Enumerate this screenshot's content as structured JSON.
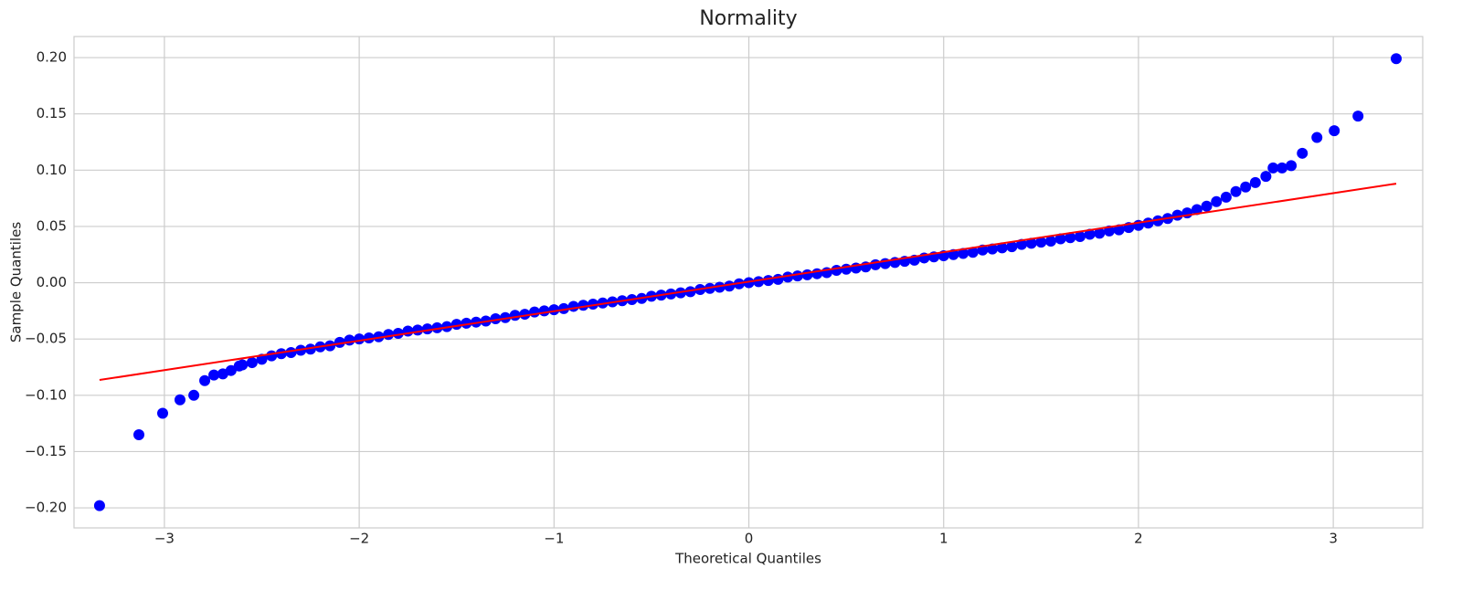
{
  "chart_data": {
    "type": "scatter",
    "title": "Normality",
    "x_label": "Theoretical Quantiles",
    "y_label": "Sample Quantiles",
    "xlim": [
      -3.464,
      3.459
    ],
    "ylim": [
      -0.2178,
      0.2187
    ],
    "xticks": [
      {
        "value": -3,
        "label": "−3"
      },
      {
        "value": -2,
        "label": "−2"
      },
      {
        "value": -1,
        "label": "−1"
      },
      0,
      1,
      2,
      3
    ],
    "yticks": [
      {
        "value": -0.2,
        "label": "−0.20"
      },
      {
        "value": -0.15,
        "label": "−0.15"
      },
      {
        "value": -0.1,
        "label": "−0.10"
      },
      {
        "value": -0.05,
        "label": "−0.05"
      },
      {
        "value": 0,
        "label": "0.00"
      },
      {
        "value": 0.05,
        "label": "0.05"
      },
      {
        "value": 0.1,
        "label": "0.10"
      },
      {
        "value": 0.15,
        "label": "0.15"
      },
      {
        "value": 0.2,
        "label": "0.20"
      }
    ],
    "grid": true,
    "series": [
      {
        "mode": "markers",
        "color": "#0000ff",
        "x": [
          -3.333,
          -3.131,
          -3.009,
          -2.92,
          -2.849,
          -2.793,
          -2.746,
          -2.7,
          -2.658,
          -2.616,
          -2.6,
          -2.55,
          -2.5,
          -2.45,
          -2.4,
          -2.35,
          -2.3,
          -2.25,
          -2.2,
          -2.15,
          -2.1,
          -2.05,
          -2.0,
          -1.95,
          -1.9,
          -1.85,
          -1.8,
          -1.75,
          -1.7,
          -1.65,
          -1.6,
          -1.55,
          -1.5,
          -1.45,
          -1.4,
          -1.35,
          -1.3,
          -1.25,
          -1.2,
          -1.15,
          -1.1,
          -1.05,
          -1.0,
          -0.95,
          -0.9,
          -0.85,
          -0.8,
          -0.75,
          -0.7,
          -0.65,
          -0.6,
          -0.55,
          -0.5,
          -0.45,
          -0.4,
          -0.35,
          -0.3,
          -0.25,
          -0.2,
          -0.15,
          -0.1,
          -0.05,
          0,
          0.05,
          0.1,
          0.15,
          0.2,
          0.25,
          0.3,
          0.35,
          0.4,
          0.45,
          0.5,
          0.55,
          0.6,
          0.65,
          0.7,
          0.75,
          0.8,
          0.85,
          0.9,
          0.95,
          1.0,
          1.05,
          1.1,
          1.15,
          1.2,
          1.25,
          1.3,
          1.35,
          1.4,
          1.45,
          1.5,
          1.55,
          1.6,
          1.65,
          1.7,
          1.75,
          1.8,
          1.85,
          1.9,
          1.95,
          2.0,
          2.05,
          2.1,
          2.15,
          2.2,
          2.25,
          2.3,
          2.35,
          2.4,
          2.45,
          2.5,
          2.55,
          2.6,
          2.654,
          2.691,
          2.737,
          2.784,
          2.841,
          2.916,
          3.005,
          3.127,
          3.323
        ],
        "values": [
          -0.198,
          -0.135,
          -0.116,
          -0.104,
          -0.1,
          -0.087,
          -0.082,
          -0.081,
          -0.078,
          -0.074,
          -0.073,
          -0.071,
          -0.068,
          -0.065,
          -0.063,
          -0.062,
          -0.06,
          -0.059,
          -0.057,
          -0.056,
          -0.053,
          -0.051,
          -0.05,
          -0.049,
          -0.048,
          -0.046,
          -0.045,
          -0.043,
          -0.042,
          -0.041,
          -0.04,
          -0.039,
          -0.037,
          -0.036,
          -0.035,
          -0.034,
          -0.032,
          -0.031,
          -0.029,
          -0.028,
          -0.026,
          -0.025,
          -0.024,
          -0.023,
          -0.021,
          -0.02,
          -0.019,
          -0.018,
          -0.017,
          -0.016,
          -0.015,
          -0.014,
          -0.012,
          -0.011,
          -0.01,
          -0.009,
          -0.008,
          -0.006,
          -0.005,
          -0.004,
          -0.003,
          -0.001,
          0,
          0.001,
          0.002,
          0.003,
          0.005,
          0.006,
          0.007,
          0.008,
          0.009,
          0.011,
          0.012,
          0.013,
          0.014,
          0.016,
          0.017,
          0.018,
          0.019,
          0.02,
          0.022,
          0.023,
          0.024,
          0.025,
          0.026,
          0.027,
          0.029,
          0.03,
          0.031,
          0.032,
          0.034,
          0.035,
          0.036,
          0.037,
          0.039,
          0.04,
          0.041,
          0.043,
          0.044,
          0.046,
          0.047,
          0.049,
          0.051,
          0.053,
          0.055,
          0.057,
          0.06,
          0.062,
          0.065,
          0.068,
          0.072,
          0.076,
          0.081,
          0.085,
          0.089,
          0.0945,
          0.102,
          0.102,
          0.104,
          0.115,
          0.129,
          0.135,
          0.148,
          0.199
        ]
      },
      {
        "mode": "line",
        "color": "#ff0000",
        "x": [
          -3.333,
          3.323
        ],
        "values": [
          -0.0864,
          0.088
        ]
      }
    ]
  }
}
